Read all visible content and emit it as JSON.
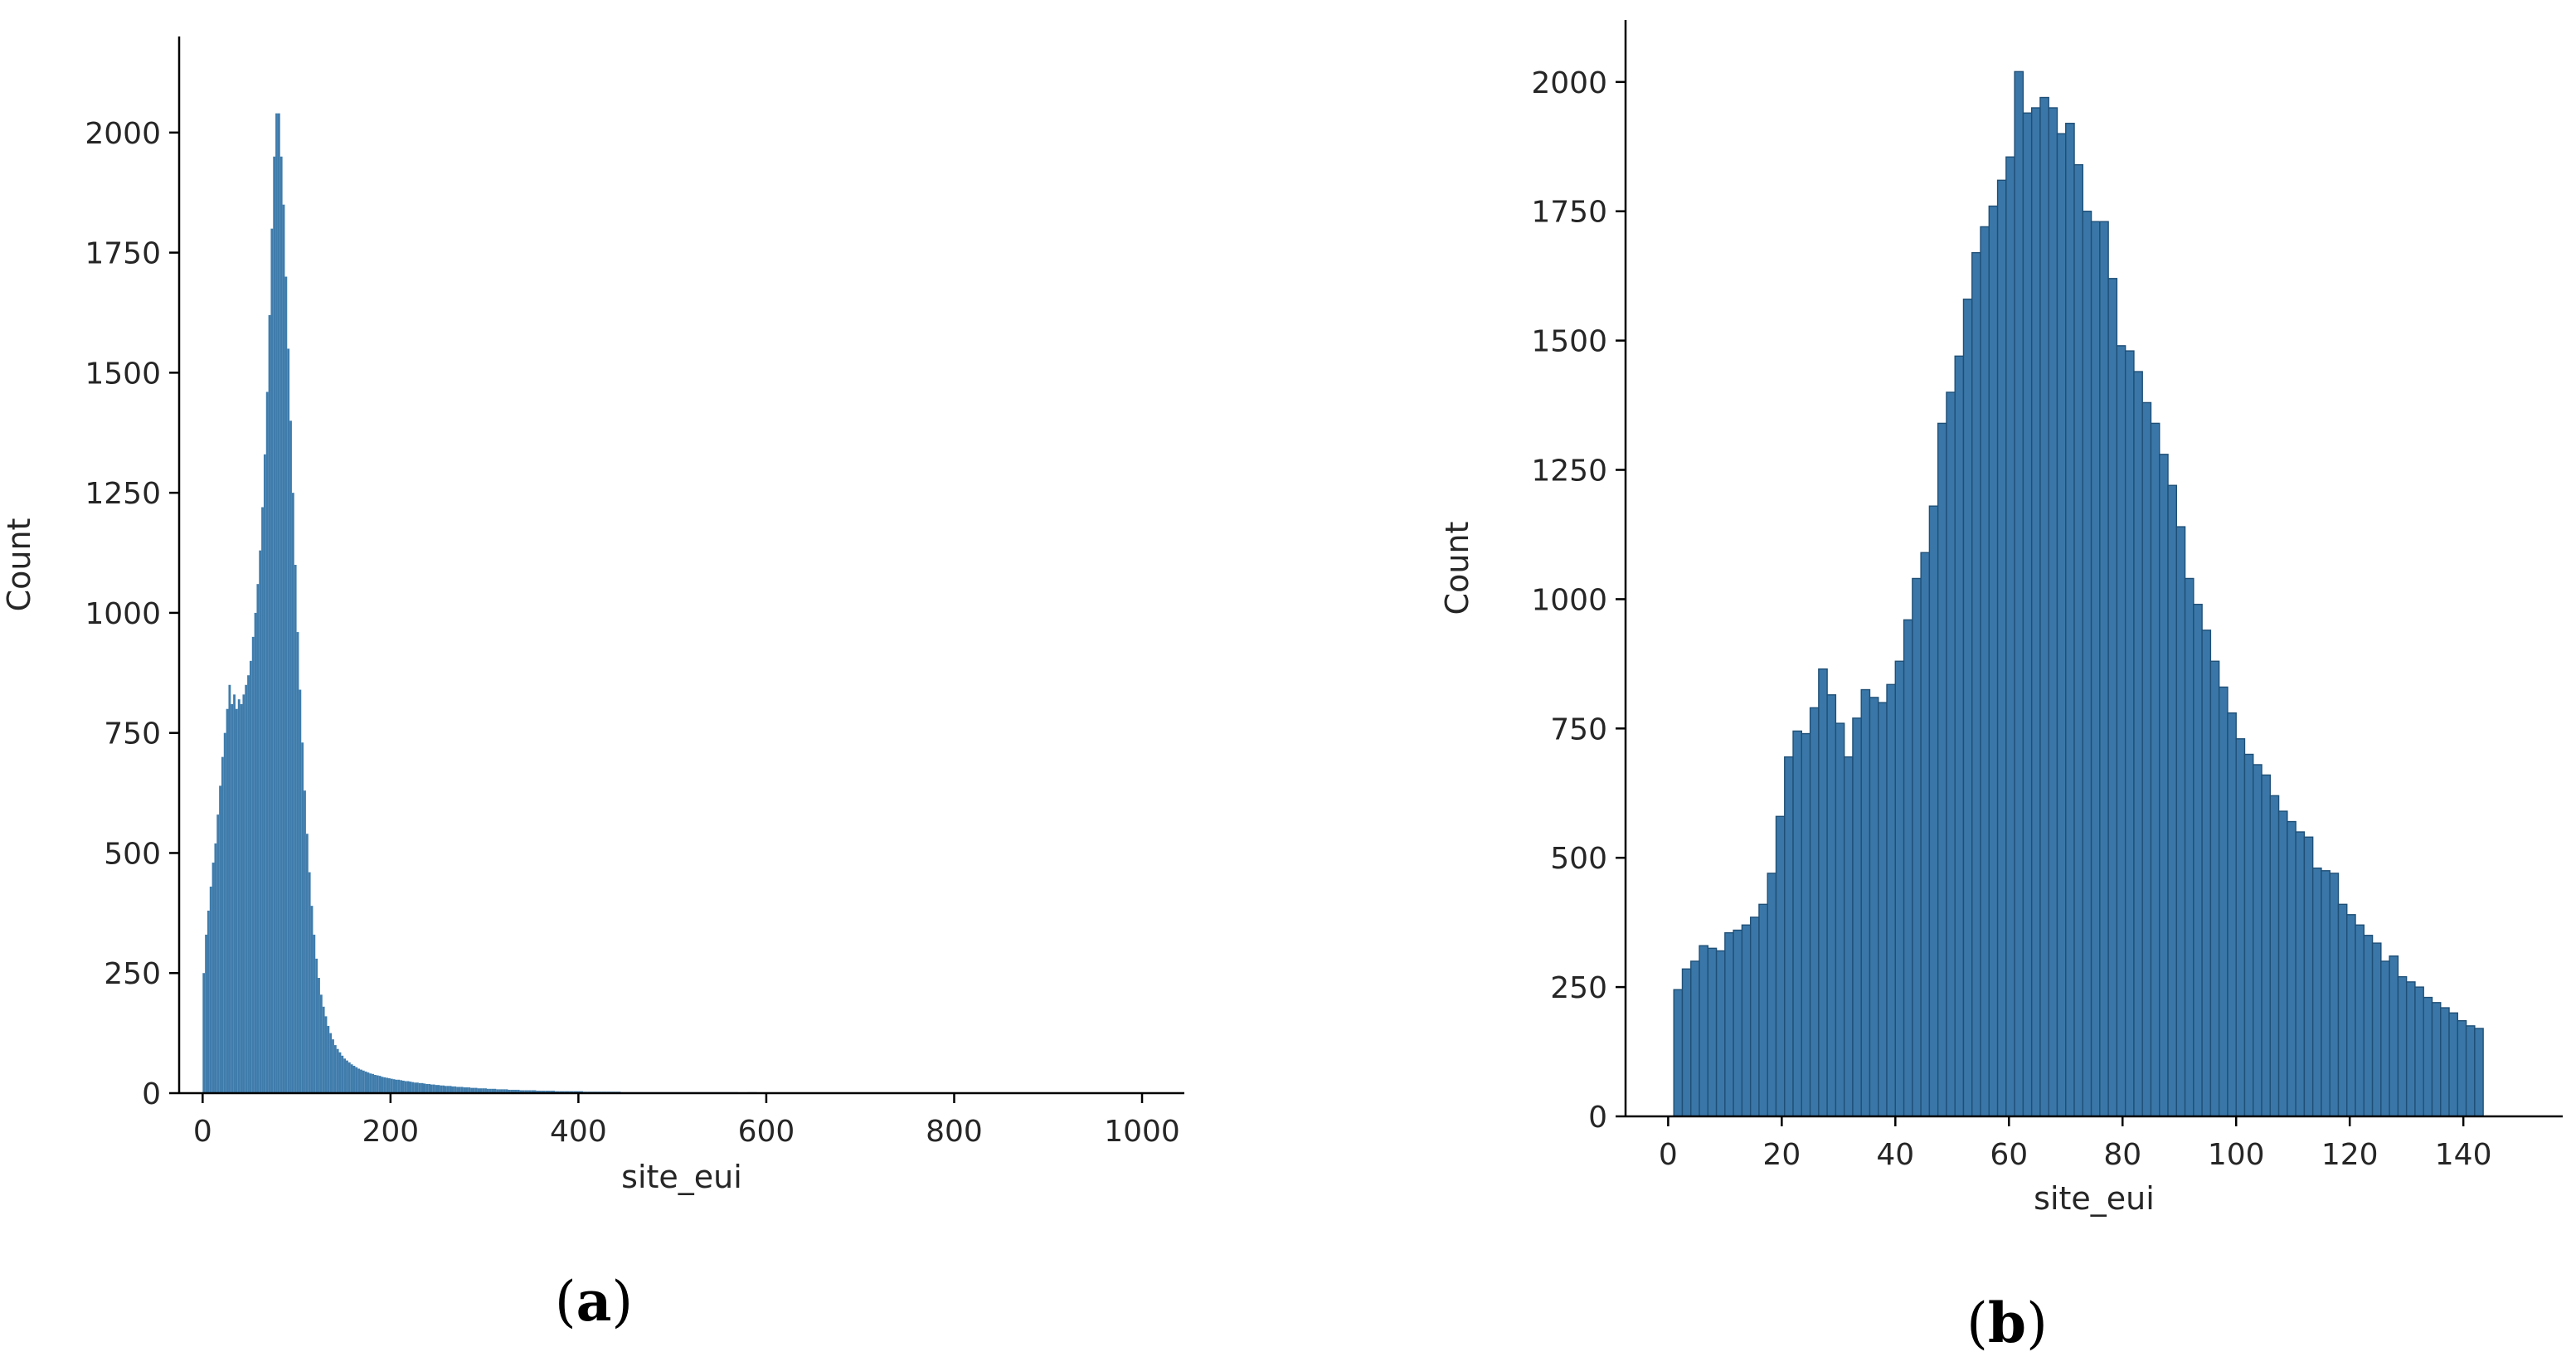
{
  "colors": {
    "bar_fill": "#3a77a8",
    "bar_fill_fine": "#3f7cac",
    "bar_edge": "#1f4f76",
    "axis": "#000000",
    "text": "#262626"
  },
  "chart_data": [
    {
      "id": "a",
      "type": "bar",
      "panel_label": "(a)",
      "panel_letter": "a",
      "title": "",
      "xlabel": "site_eui",
      "ylabel": "Count",
      "xlim": [
        -25,
        1045
      ],
      "ylim": [
        0,
        2200
      ],
      "xticks": [
        0,
        200,
        400,
        600,
        800,
        1000
      ],
      "yticks": [
        0,
        250,
        500,
        750,
        1000,
        1250,
        1500,
        1750,
        2000
      ],
      "bin_width": 2.5,
      "grid": false,
      "legend": "none",
      "bins": [
        [
          0,
          250
        ],
        [
          2.5,
          330
        ],
        [
          5,
          380
        ],
        [
          7.5,
          430
        ],
        [
          10,
          480
        ],
        [
          12.5,
          520
        ],
        [
          15,
          580
        ],
        [
          17.5,
          640
        ],
        [
          20,
          700
        ],
        [
          22.5,
          750
        ],
        [
          25,
          800
        ],
        [
          27.5,
          850
        ],
        [
          30,
          810
        ],
        [
          32.5,
          830
        ],
        [
          35,
          800
        ],
        [
          37.5,
          820
        ],
        [
          40,
          810
        ],
        [
          42.5,
          830
        ],
        [
          45,
          850
        ],
        [
          47.5,
          870
        ],
        [
          50,
          900
        ],
        [
          52.5,
          950
        ],
        [
          55,
          1000
        ],
        [
          57.5,
          1060
        ],
        [
          60,
          1130
        ],
        [
          62.5,
          1220
        ],
        [
          65,
          1330
        ],
        [
          67.5,
          1460
        ],
        [
          70,
          1620
        ],
        [
          72.5,
          1800
        ],
        [
          75,
          1950
        ],
        [
          77.5,
          2040
        ],
        [
          80,
          2040
        ],
        [
          82.5,
          1950
        ],
        [
          85,
          1850
        ],
        [
          87.5,
          1700
        ],
        [
          90,
          1550
        ],
        [
          92.5,
          1400
        ],
        [
          95,
          1250
        ],
        [
          97.5,
          1100
        ],
        [
          100,
          960
        ],
        [
          102.5,
          840
        ],
        [
          105,
          730
        ],
        [
          107.5,
          630
        ],
        [
          110,
          540
        ],
        [
          112.5,
          460
        ],
        [
          115,
          390
        ],
        [
          117.5,
          330
        ],
        [
          120,
          280
        ],
        [
          122.5,
          240
        ],
        [
          125,
          205
        ],
        [
          127.5,
          180
        ],
        [
          130,
          160
        ],
        [
          132.5,
          140
        ],
        [
          135,
          125
        ],
        [
          137.5,
          112
        ],
        [
          140,
          100
        ],
        [
          142.5,
          92
        ],
        [
          145,
          85
        ],
        [
          147.5,
          78
        ],
        [
          150,
          72
        ],
        [
          152.5,
          68
        ],
        [
          155,
          64
        ],
        [
          157.5,
          60
        ],
        [
          160,
          57
        ],
        [
          162.5,
          54
        ],
        [
          165,
          51
        ],
        [
          167.5,
          49
        ],
        [
          170,
          47
        ],
        [
          172.5,
          45
        ],
        [
          175,
          43
        ],
        [
          177.5,
          41
        ],
        [
          180,
          40
        ],
        [
          182.5,
          38
        ],
        [
          185,
          37
        ],
        [
          187.5,
          36
        ],
        [
          190,
          34
        ],
        [
          192.5,
          33
        ],
        [
          195,
          32
        ],
        [
          197.5,
          31
        ],
        [
          200,
          30
        ],
        [
          202.5,
          29
        ],
        [
          205,
          28
        ],
        [
          207.5,
          28
        ],
        [
          210,
          27
        ],
        [
          212.5,
          26
        ],
        [
          215,
          25
        ],
        [
          217.5,
          25
        ],
        [
          220,
          24
        ],
        [
          222.5,
          23
        ],
        [
          225,
          22
        ],
        [
          227.5,
          22
        ],
        [
          230,
          21
        ],
        [
          232.5,
          21
        ],
        [
          235,
          20
        ],
        [
          237.5,
          19
        ],
        [
          240,
          19
        ],
        [
          242.5,
          18
        ],
        [
          245,
          18
        ],
        [
          247.5,
          17
        ],
        [
          250,
          17
        ],
        [
          252.5,
          16
        ],
        [
          255,
          16
        ],
        [
          257.5,
          15
        ],
        [
          260,
          15
        ],
        [
          262.5,
          15
        ],
        [
          265,
          14
        ],
        [
          267.5,
          14
        ],
        [
          270,
          13
        ],
        [
          272.5,
          13
        ],
        [
          275,
          13
        ],
        [
          277.5,
          12
        ],
        [
          280,
          12
        ],
        [
          282.5,
          12
        ],
        [
          285,
          11
        ],
        [
          287.5,
          11
        ],
        [
          290,
          11
        ],
        [
          292.5,
          10
        ],
        [
          295,
          10
        ],
        [
          297.5,
          10
        ],
        [
          300,
          10
        ],
        [
          302.5,
          9
        ],
        [
          305,
          9
        ],
        [
          307.5,
          9
        ],
        [
          310,
          9
        ],
        [
          312.5,
          8
        ],
        [
          315,
          8
        ],
        [
          317.5,
          8
        ],
        [
          320,
          8
        ],
        [
          322.5,
          8
        ],
        [
          325,
          7
        ],
        [
          327.5,
          7
        ],
        [
          330,
          7
        ],
        [
          332.5,
          7
        ],
        [
          335,
          7
        ],
        [
          337.5,
          6
        ],
        [
          340,
          6
        ],
        [
          342.5,
          6
        ],
        [
          345,
          6
        ],
        [
          347.5,
          6
        ],
        [
          350,
          6
        ],
        [
          355,
          5
        ],
        [
          360,
          5
        ],
        [
          365,
          5
        ],
        [
          370,
          5
        ],
        [
          375,
          4
        ],
        [
          380,
          4
        ],
        [
          385,
          4
        ],
        [
          390,
          4
        ],
        [
          395,
          4
        ],
        [
          400,
          4
        ],
        [
          405,
          3
        ],
        [
          410,
          3
        ],
        [
          415,
          3
        ],
        [
          420,
          3
        ],
        [
          425,
          3
        ],
        [
          430,
          3
        ],
        [
          435,
          3
        ],
        [
          440,
          3
        ],
        [
          445,
          2
        ],
        [
          450,
          2
        ],
        [
          455,
          2
        ],
        [
          460,
          2
        ],
        [
          465,
          2
        ],
        [
          470,
          2
        ],
        [
          475,
          2
        ],
        [
          480,
          2
        ],
        [
          485,
          2
        ],
        [
          490,
          2
        ],
        [
          495,
          2
        ],
        [
          500,
          2
        ],
        [
          510,
          2
        ],
        [
          520,
          2
        ],
        [
          530,
          2
        ],
        [
          540,
          2
        ],
        [
          550,
          2
        ],
        [
          560,
          2
        ],
        [
          570,
          1
        ],
        [
          580,
          2
        ],
        [
          590,
          1
        ],
        [
          600,
          1
        ],
        [
          610,
          1
        ],
        [
          620,
          1
        ],
        [
          630,
          1
        ],
        [
          640,
          1
        ],
        [
          650,
          1
        ],
        [
          660,
          1
        ],
        [
          670,
          1
        ],
        [
          680,
          1
        ],
        [
          690,
          1
        ],
        [
          700,
          1
        ],
        [
          720,
          1
        ],
        [
          740,
          1
        ],
        [
          760,
          1
        ],
        [
          780,
          1
        ],
        [
          800,
          1
        ],
        [
          830,
          1
        ],
        [
          860,
          1
        ],
        [
          890,
          1
        ],
        [
          915,
          1
        ],
        [
          940,
          1
        ],
        [
          970,
          1
        ],
        [
          1000,
          1
        ]
      ]
    },
    {
      "id": "b",
      "type": "bar",
      "panel_label": "(b)",
      "panel_letter": "b",
      "title": "",
      "xlabel": "site_eui",
      "ylabel": "Count",
      "xlim": [
        -7.5,
        157.5
      ],
      "ylim": [
        0,
        2120
      ],
      "xticks": [
        0,
        20,
        40,
        60,
        80,
        100,
        120,
        140
      ],
      "yticks": [
        0,
        250,
        500,
        750,
        1000,
        1250,
        1500,
        1750,
        2000
      ],
      "bin_width": 1.5,
      "grid": false,
      "legend": "none",
      "bins": [
        [
          1,
          245
        ],
        [
          2.5,
          285
        ],
        [
          4,
          300
        ],
        [
          5.5,
          330
        ],
        [
          7,
          325
        ],
        [
          8.5,
          320
        ],
        [
          10,
          355
        ],
        [
          11.5,
          360
        ],
        [
          13,
          370
        ],
        [
          14.5,
          385
        ],
        [
          16,
          410
        ],
        [
          17.5,
          470
        ],
        [
          19,
          580
        ],
        [
          20.5,
          695
        ],
        [
          22,
          745
        ],
        [
          23.5,
          740
        ],
        [
          25,
          790
        ],
        [
          26.5,
          865
        ],
        [
          28,
          815
        ],
        [
          29.5,
          760
        ],
        [
          31,
          695
        ],
        [
          32.5,
          770
        ],
        [
          34,
          825
        ],
        [
          35.5,
          810
        ],
        [
          37,
          800
        ],
        [
          38.5,
          835
        ],
        [
          40,
          880
        ],
        [
          41.5,
          960
        ],
        [
          43,
          1040
        ],
        [
          44.5,
          1090
        ],
        [
          46,
          1180
        ],
        [
          47.5,
          1340
        ],
        [
          49,
          1400
        ],
        [
          50.5,
          1470
        ],
        [
          52,
          1580
        ],
        [
          53.5,
          1670
        ],
        [
          55,
          1720
        ],
        [
          56.5,
          1760
        ],
        [
          58,
          1810
        ],
        [
          59.5,
          1855
        ],
        [
          61,
          2020
        ],
        [
          62.5,
          1940
        ],
        [
          64,
          1950
        ],
        [
          65.5,
          1970
        ],
        [
          67,
          1950
        ],
        [
          68.5,
          1900
        ],
        [
          70,
          1920
        ],
        [
          71.5,
          1840
        ],
        [
          73,
          1750
        ],
        [
          74.5,
          1730
        ],
        [
          76,
          1730
        ],
        [
          77.5,
          1620
        ],
        [
          79,
          1490
        ],
        [
          80.5,
          1480
        ],
        [
          82,
          1440
        ],
        [
          83.5,
          1380
        ],
        [
          85,
          1340
        ],
        [
          86.5,
          1280
        ],
        [
          88,
          1220
        ],
        [
          89.5,
          1140
        ],
        [
          91,
          1040
        ],
        [
          92.5,
          990
        ],
        [
          94,
          940
        ],
        [
          95.5,
          880
        ],
        [
          97,
          830
        ],
        [
          98.5,
          780
        ],
        [
          100,
          730
        ],
        [
          101.5,
          700
        ],
        [
          103,
          680
        ],
        [
          104.5,
          660
        ],
        [
          106,
          620
        ],
        [
          107.5,
          590
        ],
        [
          109,
          570
        ],
        [
          110.5,
          550
        ],
        [
          112,
          540
        ],
        [
          113.5,
          480
        ],
        [
          115,
          475
        ],
        [
          116.5,
          470
        ],
        [
          118,
          410
        ],
        [
          119.5,
          390
        ],
        [
          121,
          370
        ],
        [
          122.5,
          350
        ],
        [
          124,
          335
        ],
        [
          125.5,
          300
        ],
        [
          127,
          310
        ],
        [
          128.5,
          270
        ],
        [
          130,
          260
        ],
        [
          131.5,
          250
        ],
        [
          133,
          230
        ],
        [
          134.5,
          220
        ],
        [
          136,
          210
        ],
        [
          137.5,
          200
        ],
        [
          139,
          185
        ],
        [
          140.5,
          175
        ],
        [
          142,
          170
        ]
      ]
    }
  ]
}
